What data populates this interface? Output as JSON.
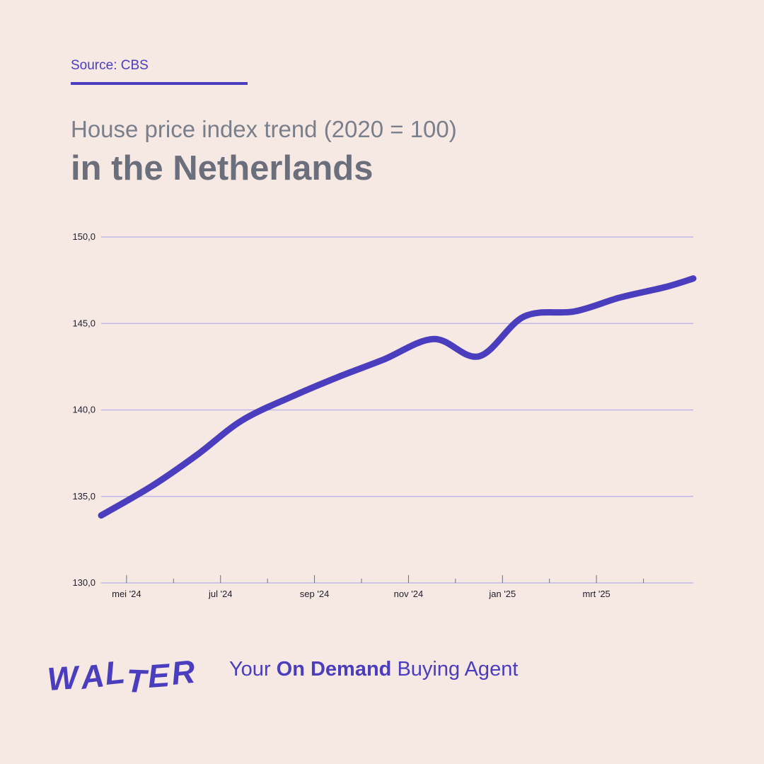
{
  "source": "Source: CBS",
  "title_line1": "House price index trend (2020 = 100)",
  "title_line2": "in the Netherlands",
  "brand": {
    "logo": "WALTER",
    "tagline_pre": "Your ",
    "tagline_bold": "On Demand",
    "tagline_post": " Buying Agent"
  },
  "colors": {
    "accent": "#4A3EBF",
    "background": "#F6E8E2",
    "grid": "#B7AEEA"
  },
  "chart_data": {
    "type": "line",
    "title": "House price index trend (2020 = 100) in the Netherlands",
    "xlabel": "",
    "ylabel": "",
    "ylim": [
      130,
      150
    ],
    "yticks": [
      "130,0",
      "135,0",
      "140,0",
      "145,0",
      "150,0"
    ],
    "ytick_values": [
      130,
      135,
      140,
      145,
      150
    ],
    "x_tick_labels": [
      "mei '24",
      "jul '24",
      "sep '24",
      "nov '24",
      "jan '25",
      "mrt '25"
    ],
    "x_range": [
      2024.33,
      2025.38
    ],
    "grid": true,
    "legend": "none",
    "series": [
      {
        "x": [
          2024.33,
          2024.42,
          2024.5,
          2024.58,
          2024.67,
          2024.75,
          2024.83,
          2024.92,
          2025.0,
          2025.08,
          2025.17,
          2025.25,
          2025.33,
          2025.38
        ],
        "values": [
          133.9,
          135.6,
          137.4,
          139.4,
          140.8,
          141.9,
          142.9,
          144.1,
          143.1,
          145.4,
          145.7,
          146.5,
          147.1,
          147.6
        ]
      }
    ]
  }
}
